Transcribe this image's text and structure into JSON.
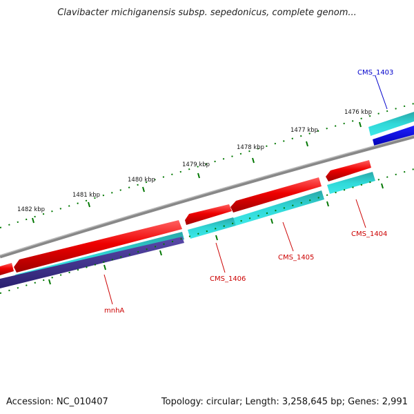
{
  "title": "Clavibacter michiganensis subsp. sepedonicus, complete genom...",
  "footer": {
    "accession": "Accession: NC_010407",
    "summary": "Topology: circular; Length: 3,258,645 bp; Genes: 2,991"
  },
  "scale_labels": [
    "1476 kbp",
    "1477 kbp",
    "1478 kbp",
    "1479 kbp",
    "1480 kbp",
    "1481 kbp",
    "1482 kbp"
  ],
  "gene_labels": {
    "cms_1403": "CMS_1403",
    "cms_1404": "CMS_1404",
    "cms_1405": "CMS_1405",
    "cms_1406": "CMS_1406",
    "mnha": "mnhA"
  },
  "colors": {
    "forward_gene": "#ee0000",
    "forward_cds": "#20c8c8",
    "reverse_gene": "#0000ee",
    "reverse_cds": "#4a3a9a",
    "backbone": "#808080",
    "tick": "#007700",
    "label_red": "#cc0000",
    "label_blue": "#0000cc"
  }
}
